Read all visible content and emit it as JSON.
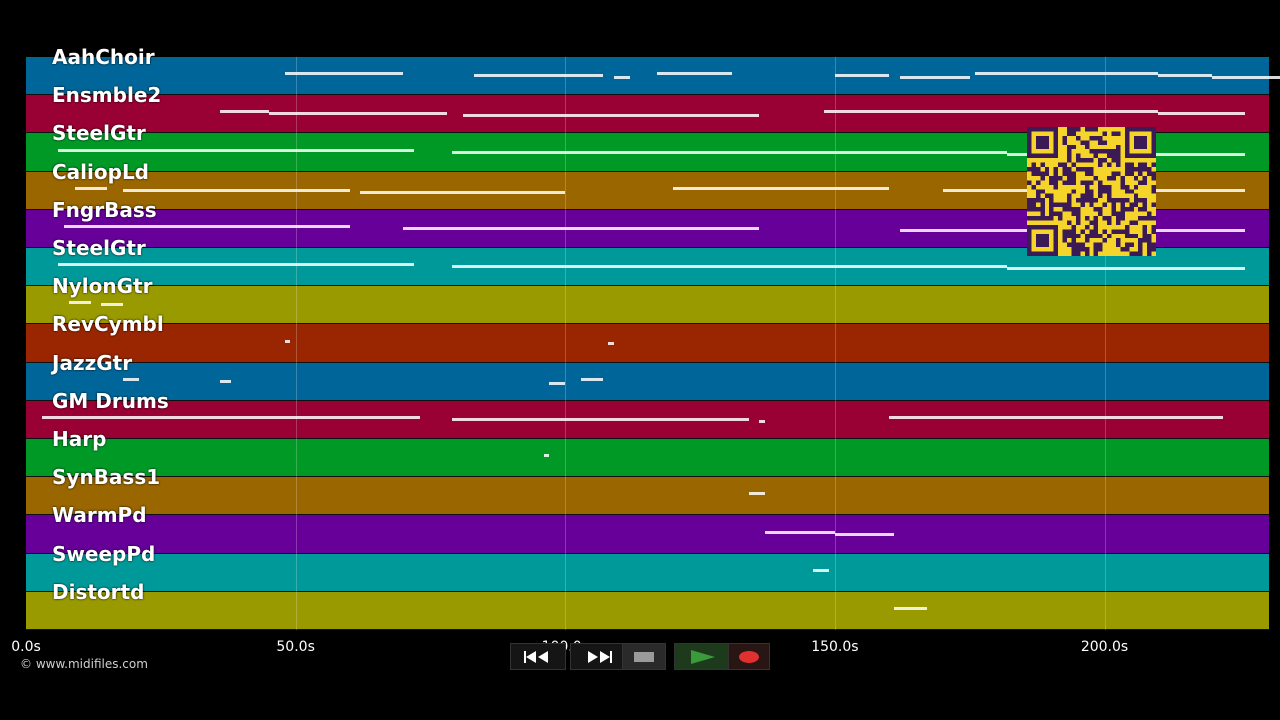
{
  "tracks": [
    {
      "name": "AahChoir",
      "color": "#006699"
    },
    {
      "name": "Ensmble2",
      "color": "#990033"
    },
    {
      "name": "SteelGtr",
      "color": "#009926"
    },
    {
      "name": "CaliopLd",
      "color": "#996600"
    },
    {
      "name": "FngrBass",
      "color": "#660099"
    },
    {
      "name": "SteelGtr",
      "color": "#009999"
    },
    {
      "name": "NylonGtr",
      "color": "#999900"
    },
    {
      "name": "RevCymbl",
      "color": "#992600"
    },
    {
      "name": "JazzGtr",
      "color": "#006699"
    },
    {
      "name": "GM Drums",
      "color": "#990033"
    },
    {
      "name": "Harp",
      "color": "#009926"
    },
    {
      "name": "SynBass1",
      "color": "#996600"
    },
    {
      "name": "WarmPd",
      "color": "#660099"
    },
    {
      "name": "SweepPd",
      "color": "#009999"
    },
    {
      "name": "Distortd",
      "color": "#999900"
    }
  ],
  "timeline": {
    "ticks": [
      {
        "seconds": 0,
        "label": "0.0s"
      },
      {
        "seconds": 50,
        "label": "50.0s"
      },
      {
        "seconds": 100,
        "label": "100.0s"
      },
      {
        "seconds": 150,
        "label": "150.0s"
      },
      {
        "seconds": 200,
        "label": "200.0s"
      }
    ],
    "max_seconds": 230.5
  },
  "credit": "© www.midifiles.com",
  "transport": {
    "rewind_icon": "rewind-icon",
    "fast_forward_icon": "fast-forward-icon",
    "stop_icon": "stop-icon",
    "play_icon": "play-icon",
    "record_icon": "record-icon",
    "play_color": "#3a9b3a",
    "record_color": "#e03030"
  },
  "notes": [
    {
      "track": 0,
      "segments": [
        [
          48,
          70
        ],
        [
          83,
          107
        ],
        [
          109,
          112
        ],
        [
          117,
          131
        ],
        [
          150,
          160
        ],
        [
          162,
          175
        ],
        [
          176,
          210
        ],
        [
          210,
          220
        ],
        [
          220,
          235
        ]
      ]
    },
    {
      "track": 1,
      "segments": [
        [
          36,
          45
        ],
        [
          45,
          78
        ],
        [
          81,
          136
        ],
        [
          148,
          210
        ],
        [
          210,
          226
        ]
      ]
    },
    {
      "track": 2,
      "segments": [
        [
          6,
          72
        ],
        [
          79,
          182
        ],
        [
          182,
          226
        ]
      ]
    },
    {
      "track": 3,
      "segments": [
        [
          9,
          15
        ],
        [
          18,
          60
        ],
        [
          62,
          100
        ],
        [
          120,
          160
        ],
        [
          170,
          226
        ]
      ]
    },
    {
      "track": 4,
      "segments": [
        [
          7,
          60
        ],
        [
          70,
          136
        ],
        [
          162,
          226
        ]
      ]
    },
    {
      "track": 5,
      "segments": [
        [
          6,
          72
        ],
        [
          79,
          182
        ],
        [
          182,
          226
        ]
      ]
    },
    {
      "track": 6,
      "segments": [
        [
          8,
          12
        ],
        [
          14,
          18
        ]
      ]
    },
    {
      "track": 7,
      "segments": [
        [
          48,
          49
        ],
        [
          108,
          109
        ]
      ]
    },
    {
      "track": 8,
      "segments": [
        [
          18,
          21
        ],
        [
          36,
          38
        ],
        [
          97,
          100
        ],
        [
          103,
          107
        ]
      ]
    },
    {
      "track": 9,
      "segments": [
        [
          3,
          73
        ],
        [
          79,
          134
        ],
        [
          136,
          137
        ],
        [
          160,
          222
        ]
      ]
    },
    {
      "track": 10,
      "segments": [
        [
          96,
          97
        ]
      ]
    },
    {
      "track": 11,
      "segments": [
        [
          134,
          137
        ]
      ]
    },
    {
      "track": 12,
      "segments": [
        [
          137,
          150
        ],
        [
          150,
          161
        ]
      ]
    },
    {
      "track": 13,
      "segments": [
        [
          146,
          149
        ]
      ]
    },
    {
      "track": 14,
      "segments": [
        [
          161,
          167
        ]
      ]
    }
  ]
}
